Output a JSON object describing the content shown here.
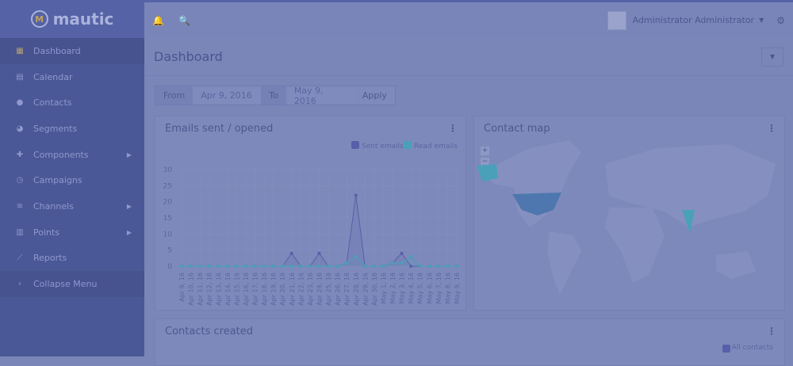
{
  "app": {
    "logo": "mautic"
  },
  "sidebar": {
    "items": [
      {
        "label": "Dashboard",
        "icon": "grid-icon",
        "active": true
      },
      {
        "label": "Calendar",
        "icon": "calendar-icon"
      },
      {
        "label": "Contacts",
        "icon": "user-icon"
      },
      {
        "label": "Segments",
        "icon": "pie-icon"
      },
      {
        "label": "Components",
        "icon": "puzzle-icon",
        "submenu": true
      },
      {
        "label": "Campaigns",
        "icon": "clock-icon"
      },
      {
        "label": "Channels",
        "icon": "rss-icon",
        "submenu": true
      },
      {
        "label": "Points",
        "icon": "calculator-icon",
        "submenu": true
      },
      {
        "label": "Reports",
        "icon": "line-chart-icon"
      },
      {
        "label": "Collapse Menu",
        "icon": "chevron-left-icon"
      }
    ]
  },
  "header": {
    "user": "Administrator Administrator"
  },
  "page": {
    "title": "Dashboard"
  },
  "filter": {
    "from_label": "From",
    "from": "Apr 9, 2016",
    "to_label": "To",
    "to": "May 9, 2016",
    "apply": "Apply"
  },
  "widgets": {
    "emails": "Emails sent / opened",
    "map": "Contact map",
    "contacts": "Contacts created",
    "contacts_legend": "All contacts"
  },
  "chart_data": {
    "type": "line",
    "title": "Emails sent / opened",
    "categories": [
      "Apr 9, 16",
      "Apr 10, 16",
      "Apr 11, 16",
      "Apr 12, 16",
      "Apr 13, 16",
      "Apr 14, 16",
      "Apr 15, 16",
      "Apr 16, 16",
      "Apr 17, 16",
      "Apr 18, 16",
      "Apr 19, 16",
      "Apr 20, 16",
      "Apr 21, 16",
      "Apr 22, 16",
      "Apr 23, 16",
      "Apr 24, 16",
      "Apr 25, 16",
      "Apr 26, 16",
      "Apr 27, 16",
      "Apr 28, 16",
      "Apr 29, 16",
      "Apr 30, 16",
      "May 1, 16",
      "May 2, 16",
      "May 3, 16",
      "May 4, 16",
      "May 5, 16",
      "May 6, 16",
      "May 7, 16",
      "May 8, 16",
      "May 9, 16"
    ],
    "series": [
      {
        "name": "Sent emails",
        "color": "#5560a8",
        "values": [
          0,
          0,
          0,
          0,
          0,
          0,
          0,
          0,
          0,
          0,
          0,
          0,
          4,
          0,
          0,
          4,
          0,
          0,
          1,
          22,
          0,
          0,
          0,
          1,
          4,
          0,
          0,
          0,
          0,
          0,
          0
        ]
      },
      {
        "name": "Read emails",
        "color": "#4aa0b8",
        "values": [
          0,
          0,
          0,
          0,
          0,
          0,
          0,
          0,
          0,
          0,
          0,
          0,
          0,
          0,
          0,
          0,
          0,
          0,
          1,
          3,
          0,
          0,
          0,
          1,
          1,
          3,
          0,
          0,
          0,
          0,
          0
        ]
      }
    ],
    "yticks": [
      0,
      5,
      10,
      15,
      20,
      25,
      30
    ],
    "ylim": [
      0,
      30
    ],
    "grid": true,
    "legend": "top-right"
  }
}
